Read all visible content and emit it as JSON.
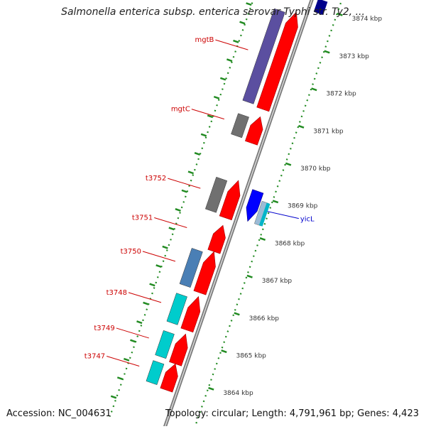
{
  "title": "Salmonella enterica subsp. enterica serovar Typhi str. Ty2, ...",
  "accession": "Accession: NC_004631",
  "topology": "Topology: circular; Length: 4,791,961 bp; Genes: 4,423",
  "scale_unit": "kbp",
  "ticks": [
    {
      "kbp": 3874,
      "label": "3874 kbp"
    },
    {
      "kbp": 3873,
      "label": "3873 kbp"
    },
    {
      "kbp": 3872,
      "label": "3872 kbp"
    },
    {
      "kbp": 3871,
      "label": "3871 kbp"
    },
    {
      "kbp": 3870,
      "label": "3870 kbp"
    },
    {
      "kbp": 3869,
      "label": "3869 kbp"
    },
    {
      "kbp": 3868,
      "label": "3868 kbp"
    },
    {
      "kbp": 3867,
      "label": "3867 kbp"
    },
    {
      "kbp": 3866,
      "label": "3866 kbp"
    },
    {
      "kbp": 3865,
      "label": "3865 kbp"
    },
    {
      "kbp": 3864,
      "label": "3864 kbp"
    }
  ],
  "genes": [
    {
      "name": "mgtB",
      "strand": "forward",
      "start_kbp": 3871.1,
      "end_kbp": 3873.7,
      "color": "#ff0000",
      "cog_color": "#5b4fa0",
      "label_color": "#cc0000"
    },
    {
      "name": "mgtC",
      "strand": "forward",
      "start_kbp": 3870.2,
      "end_kbp": 3870.9,
      "color": "#ff0000",
      "cog_color": "#707070",
      "label_color": "#cc0000"
    },
    {
      "name": "t3752",
      "strand": "forward",
      "start_kbp": 3868.2,
      "end_kbp": 3869.2,
      "color": "#ff0000",
      "cog_color": "#707070",
      "label_color": "#cc0000"
    },
    {
      "name": "t3751",
      "strand": "forward",
      "start_kbp": 3867.3,
      "end_kbp": 3868.0,
      "color": "#ff0000",
      "cog_color": "",
      "label_color": "#cc0000"
    },
    {
      "name": "t3750",
      "strand": "forward",
      "start_kbp": 3866.2,
      "end_kbp": 3867.3,
      "color": "#ff0000",
      "cog_color": "#4a7fb5",
      "label_color": "#cc0000"
    },
    {
      "name": "t3748",
      "strand": "forward",
      "start_kbp": 3865.2,
      "end_kbp": 3866.1,
      "color": "#ff0000",
      "cog_color": "#00cccc",
      "label_color": "#cc0000"
    },
    {
      "name": "t3749",
      "strand": "forward",
      "start_kbp": 3864.3,
      "end_kbp": 3865.1,
      "color": "#ff0000",
      "cog_color": "#00cccc",
      "label_color": "#cc0000"
    },
    {
      "name": "t3747",
      "strand": "forward",
      "start_kbp": 3863.6,
      "end_kbp": 3864.3,
      "color": "#ff0000",
      "cog_color": "#00cccc",
      "label_color": "#cc0000"
    },
    {
      "name": "yicL",
      "strand": "reverse",
      "start_kbp": 3868.3,
      "end_kbp": 3869.1,
      "color": "#0000ff",
      "cog_color": "#9bbbd6",
      "label_color": "#0000cc"
    }
  ],
  "colors": {
    "forward_cds": "#ff0000",
    "reverse_cds": "#0000ff",
    "backbone": "#8c8c8c",
    "tick_marks": "#228b22",
    "label_forward": "#cc0000",
    "label_reverse": "#0000cc"
  }
}
